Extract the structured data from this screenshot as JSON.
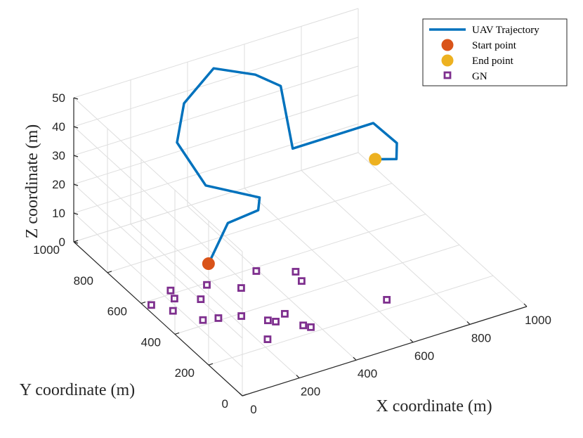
{
  "chart_data": {
    "type": "scatter3d-with-trajectory",
    "xlabel": "X coordinate (m)",
    "ylabel": "Y coordinate (m)",
    "zlabel": "Z coordinate (m)",
    "xlim": [
      0,
      1000
    ],
    "ylim": [
      0,
      1000
    ],
    "zlim": [
      0,
      50
    ],
    "x_ticks": [
      0,
      200,
      400,
      600,
      800,
      1000
    ],
    "y_ticks": [
      0,
      200,
      400,
      600,
      800,
      1000
    ],
    "z_ticks": [
      0,
      10,
      20,
      30,
      40,
      50
    ],
    "grid": true,
    "legend_position": "top-right",
    "legend": [
      {
        "key": "traj",
        "label": "UAV Trajectory"
      },
      {
        "key": "start",
        "label": "Start point"
      },
      {
        "key": "end",
        "label": "End point"
      },
      {
        "key": "gn",
        "label": "GN"
      }
    ],
    "trajectory": {
      "name": "UAV Trajectory",
      "points": [
        [
          290,
          690,
          0
        ],
        [
          358,
          690,
          12
        ],
        [
          441,
          650,
          16
        ],
        [
          440,
          640,
          21
        ],
        [
          317,
          752,
          23
        ],
        [
          274,
          850,
          34
        ],
        [
          355,
          945,
          40
        ],
        [
          450,
          930,
          50
        ],
        [
          541,
          836,
          50
        ],
        [
          575,
          743,
          50
        ],
        [
          551,
          631,
          35
        ],
        [
          810,
          590,
          38
        ],
        [
          798,
          430,
          40
        ],
        [
          809,
          451,
          33
        ],
        [
          761,
          496,
          32
        ]
      ]
    },
    "start_point": [
      290,
      690,
      0
    ],
    "end_point": [
      761,
      496,
      32
    ],
    "ground_nodes": {
      "name": "GN",
      "points": [
        [
          114,
          618,
          0
        ],
        [
          101,
          573,
          0
        ],
        [
          22,
          577,
          0
        ],
        [
          62,
          516,
          0
        ],
        [
          168,
          530,
          0
        ],
        [
          225,
          590,
          0
        ],
        [
          306,
          523,
          0
        ],
        [
          394,
          582,
          0
        ],
        [
          495,
          519,
          0
        ],
        [
          484,
          465,
          0
        ],
        [
          160,
          412,
          0
        ],
        [
          226,
          387,
          0
        ],
        [
          114,
          426,
          0
        ],
        [
          283,
          326,
          0
        ],
        [
          346,
          332,
          0
        ],
        [
          300,
          308,
          0
        ],
        [
          228,
          235,
          0
        ],
        [
          361,
          248,
          0
        ],
        [
          376,
          228,
          0
        ],
        [
          653,
          245,
          0
        ]
      ]
    },
    "colors": {
      "trajectory": "#0072BD",
      "start": "#D95319",
      "end": "#EDB120",
      "gn": "#7E2F8E",
      "grid": "#DEDEDE",
      "axis": "#262626"
    }
  }
}
